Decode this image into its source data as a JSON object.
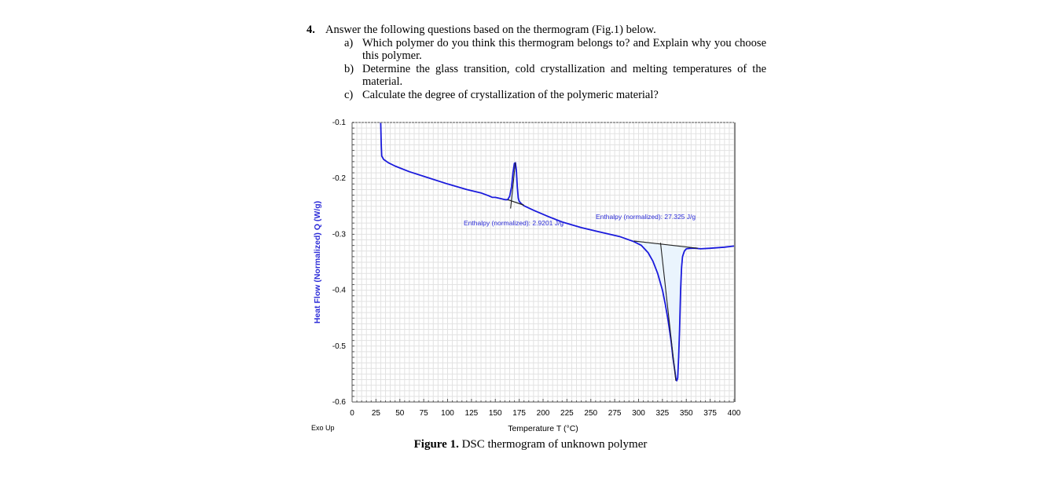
{
  "question": {
    "number": "4.",
    "intro": "Answer the following questions based on the thermogram (Fig.1) below.",
    "parts": [
      {
        "letter": "a)",
        "text": "Which polymer do you think this thermogram belongs to? and Explain why you choose this polymer."
      },
      {
        "letter": "b)",
        "text": "Determine the glass transition, cold crystallization and melting temperatures of the material."
      },
      {
        "letter": "c)",
        "text": "Calculate the degree of crystallization of the polymeric material?"
      }
    ]
  },
  "figure": {
    "caption_label": "Figure 1.",
    "caption_text": " DSC thermogram of unknown polymer",
    "exo_label": "Exo Up"
  },
  "chart_data": {
    "type": "line",
    "title": "",
    "xlabel": "Temperature  T  (°C)",
    "ylabel": "Heat Flow (Normalized)  Q  (W/g)",
    "xlim": [
      0,
      400
    ],
    "ylim": [
      -0.6,
      -0.1
    ],
    "xticks": [
      0,
      25,
      50,
      75,
      100,
      125,
      150,
      175,
      200,
      225,
      250,
      275,
      300,
      325,
      350,
      375,
      400
    ],
    "yticks": [
      -0.1,
      -0.2,
      -0.3,
      -0.4,
      -0.5,
      -0.6
    ],
    "ytick_labels": [
      "-0.1",
      "-0.2",
      "-0.3",
      "-0.4",
      "-0.5",
      "-0.6"
    ],
    "grid": true,
    "series": [
      {
        "name": "Heat Flow",
        "color": "#1a1adc",
        "x": [
          30,
          30.5,
          31,
          33,
          38,
          45,
          60,
          80,
          100,
          120,
          135,
          143,
          147,
          150,
          155,
          160,
          163,
          165,
          167,
          168.5,
          170,
          171,
          172,
          173,
          174,
          175,
          177,
          180,
          190,
          205,
          220,
          240,
          260,
          280,
          295,
          303,
          310,
          315,
          320,
          325,
          328,
          331,
          334,
          336,
          338,
          339,
          340,
          341,
          342,
          343,
          344,
          345,
          346,
          348,
          350,
          355,
          360,
          365,
          375,
          390,
          400
        ],
        "y": [
          -0.1,
          -0.14,
          -0.16,
          -0.166,
          -0.172,
          -0.178,
          -0.188,
          -0.199,
          -0.21,
          -0.22,
          -0.226,
          -0.231,
          -0.234,
          -0.234,
          -0.236,
          -0.238,
          -0.238,
          -0.232,
          -0.215,
          -0.19,
          -0.173,
          -0.172,
          -0.185,
          -0.215,
          -0.235,
          -0.241,
          -0.245,
          -0.249,
          -0.257,
          -0.268,
          -0.278,
          -0.288,
          -0.296,
          -0.304,
          -0.313,
          -0.32,
          -0.333,
          -0.348,
          -0.37,
          -0.4,
          -0.425,
          -0.455,
          -0.49,
          -0.52,
          -0.545,
          -0.557,
          -0.562,
          -0.557,
          -0.52,
          -0.47,
          -0.4,
          -0.36,
          -0.34,
          -0.33,
          -0.326,
          -0.325,
          -0.325,
          -0.326,
          -0.325,
          -0.323,
          -0.321
        ]
      }
    ],
    "integrations": [
      {
        "label": "Enthalpy (normalized): 2.9201 J/g",
        "value": 2.9201,
        "unit": "J/g",
        "baseline": {
          "x1": 163,
          "y1": -0.238,
          "x2": 180,
          "y2": -0.248
        },
        "type": "exothermic cold crystallization peak",
        "peak_x": 171,
        "peak_y": -0.172
      },
      {
        "label": "Enthalpy (normalized): 27.325 J/g",
        "value": 27.325,
        "unit": "J/g",
        "baseline": {
          "x1": 295,
          "y1": -0.312,
          "x2": 362,
          "y2": -0.325
        },
        "type": "endothermic melting peak",
        "peak_x": 340,
        "peak_y": -0.562
      }
    ],
    "annotation_color": "#2d2dd8",
    "fill_color": "#eaf4fd"
  }
}
